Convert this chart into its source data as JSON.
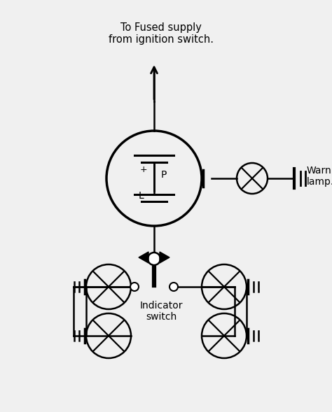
{
  "bg_color": "#f0f0f0",
  "line_color": "#000000",
  "title_text": "To Fused supply\nfrom ignition switch.",
  "warning_lamp_text": "Warning\nlamp.",
  "indicator_switch_text": "Indicator\nswitch",
  "fig_width": 4.74,
  "fig_height": 5.89,
  "dpi": 100
}
